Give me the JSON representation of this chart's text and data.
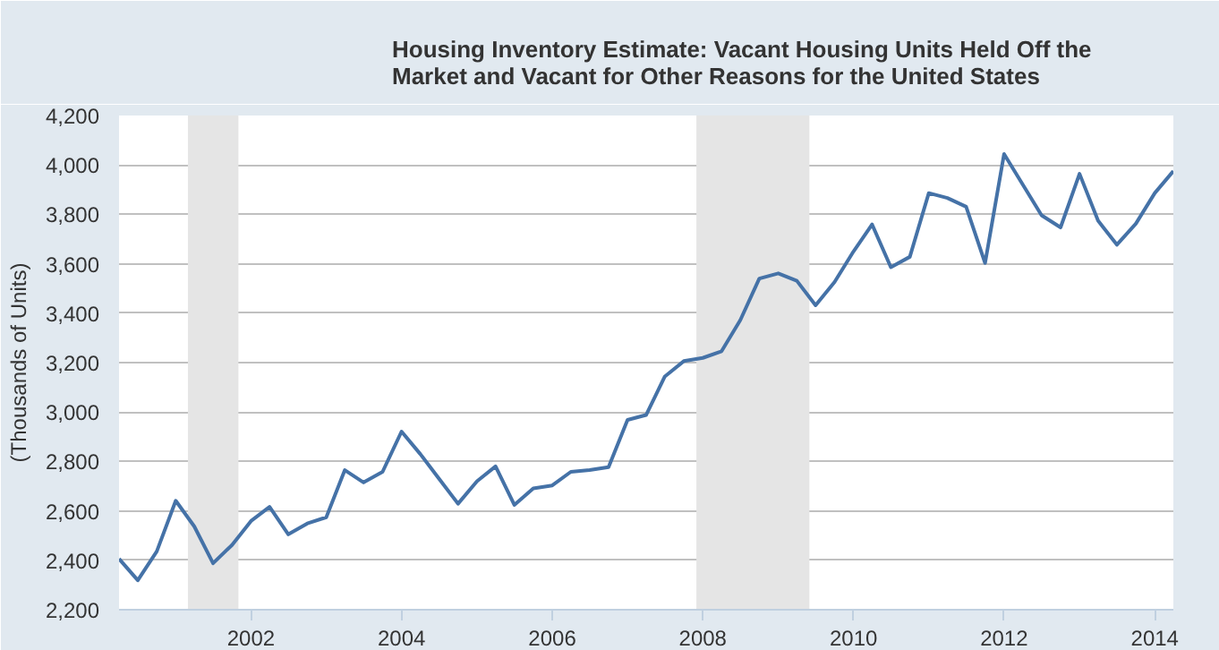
{
  "chart_data": {
    "type": "line",
    "ylabel": "(Thousands of Units)",
    "x": [
      "2000-04-01",
      "2000-07-01",
      "2000-10-01",
      "2001-01-01",
      "2001-04-01",
      "2001-07-01",
      "2001-10-01",
      "2002-01-01",
      "2002-04-01",
      "2002-07-01",
      "2002-10-01",
      "2003-01-01",
      "2003-04-01",
      "2003-07-01",
      "2003-10-01",
      "2004-01-01",
      "2004-04-01",
      "2004-07-01",
      "2004-10-01",
      "2005-01-01",
      "2005-04-01",
      "2005-07-01",
      "2005-10-01",
      "2006-01-01",
      "2006-04-01",
      "2006-07-01",
      "2006-10-01",
      "2007-01-01",
      "2007-04-01",
      "2007-07-01",
      "2007-10-01",
      "2008-01-01",
      "2008-04-01",
      "2008-07-01",
      "2008-10-01",
      "2009-01-01",
      "2009-04-01",
      "2009-07-01",
      "2009-10-01",
      "2010-01-01",
      "2010-04-01",
      "2010-07-01",
      "2010-10-01",
      "2011-01-01",
      "2011-04-01",
      "2011-07-01",
      "2011-10-01",
      "2012-01-01",
      "2012-04-01",
      "2012-07-01",
      "2012-10-01",
      "2013-01-01",
      "2013-04-01",
      "2013-07-01",
      "2013-10-01",
      "2014-01-01",
      "2014-04-01"
    ],
    "series": [
      {
        "name": "Housing Inventory Estimate: Vacant Housing Units Held Off the Market and Vacant for Other Reasons for the United States",
        "color": "#4572a7",
        "values": [
          2406,
          2319,
          2436,
          2641,
          2537,
          2388,
          2462,
          2559,
          2616,
          2505,
          2549,
          2574,
          2765,
          2715,
          2758,
          2921,
          2830,
          2730,
          2629,
          2720,
          2780,
          2624,
          2691,
          2703,
          2758,
          2765,
          2777,
          2968,
          2988,
          3144,
          3206,
          3219,
          3246,
          3372,
          3540,
          3561,
          3531,
          3432,
          3526,
          3650,
          3759,
          3586,
          3628,
          3886,
          3866,
          3831,
          3603,
          4044,
          3920,
          3796,
          3747,
          3964,
          3774,
          3677,
          3762,
          3886,
          3975
        ]
      }
    ],
    "xlim": [
      "2000-04-01",
      "2014-04-01"
    ],
    "xticks": [
      "2002",
      "2004",
      "2006",
      "2008",
      "2010",
      "2012",
      "2014"
    ],
    "ylim": [
      2200,
      4200
    ],
    "yticks": [
      {
        "value": 2200,
        "label": "2,200"
      },
      {
        "value": 2400,
        "label": "2,400"
      },
      {
        "value": 2600,
        "label": "2,600"
      },
      {
        "value": 2800,
        "label": "2,800"
      },
      {
        "value": 3000,
        "label": "3,000"
      },
      {
        "value": 3200,
        "label": "3,200"
      },
      {
        "value": 3400,
        "label": "3,400"
      },
      {
        "value": 3600,
        "label": "3,600"
      },
      {
        "value": 3800,
        "label": "3,800"
      },
      {
        "value": 4000,
        "label": "4,000"
      },
      {
        "value": 4200,
        "label": "4,200"
      }
    ],
    "bands": [
      {
        "axis": "x",
        "from": "2001-03-01",
        "to": "2001-11-01",
        "color": "#e5e5e5"
      },
      {
        "axis": "x",
        "from": "2007-12-01",
        "to": "2009-06-01",
        "color": "#e5e5e5"
      }
    ],
    "grid": "y",
    "legend": "top",
    "line_style": "solid",
    "marker": "none"
  }
}
